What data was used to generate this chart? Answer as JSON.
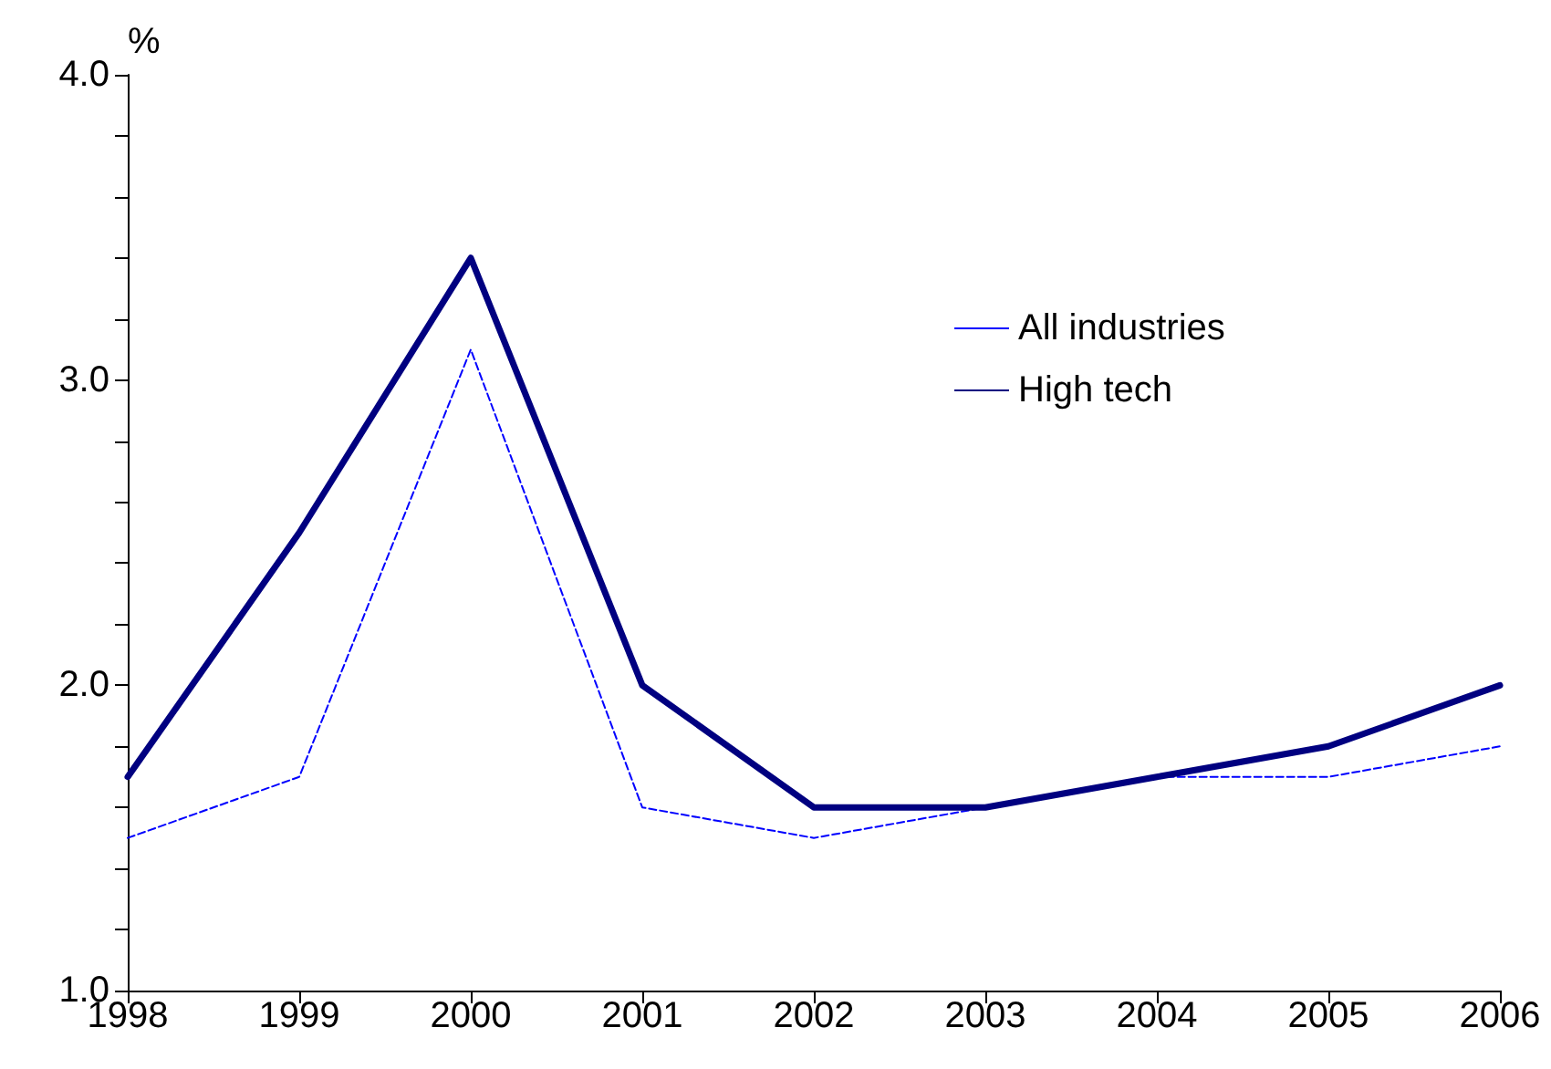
{
  "chart_data": {
    "type": "line",
    "ylabel": "%",
    "x": [
      1998,
      1999,
      2000,
      2001,
      2002,
      2003,
      2004,
      2005,
      2006
    ],
    "series": [
      {
        "name": "All industries",
        "color": "#0000ff",
        "line_style": "dashed",
        "values": [
          1.5,
          1.7,
          3.1,
          1.6,
          1.5,
          1.6,
          1.7,
          1.7,
          1.8
        ]
      },
      {
        "name": "High tech",
        "color": "#000080",
        "line_style": "solid",
        "values": [
          1.7,
          2.5,
          3.4,
          2.0,
          1.6,
          1.6,
          1.7,
          1.8,
          2.0
        ]
      }
    ],
    "xlim": [
      1998,
      2006
    ],
    "xticks": [
      1998,
      1999,
      2000,
      2001,
      2002,
      2003,
      2004,
      2005,
      2006
    ],
    "ylim": [
      1.0,
      4.0
    ],
    "yticks": [
      {
        "value": 1.0,
        "label": "1.0"
      },
      {
        "value": 1.2,
        "label": null
      },
      {
        "value": 1.4,
        "label": null
      },
      {
        "value": 1.6,
        "label": null
      },
      {
        "value": 1.8,
        "label": null
      },
      {
        "value": 2.0,
        "label": "2.0"
      },
      {
        "value": 2.2,
        "label": null
      },
      {
        "value": 2.4,
        "label": null
      },
      {
        "value": 2.6,
        "label": null
      },
      {
        "value": 2.8,
        "label": null
      },
      {
        "value": 3.0,
        "label": "3.0"
      },
      {
        "value": 3.2,
        "label": null
      },
      {
        "value": 3.4,
        "label": null
      },
      {
        "value": 3.6,
        "label": null
      },
      {
        "value": 3.8,
        "label": null
      },
      {
        "value": 4.0,
        "label": "4.0"
      }
    ],
    "grid": false,
    "legend": "top right",
    "marker": "none"
  }
}
